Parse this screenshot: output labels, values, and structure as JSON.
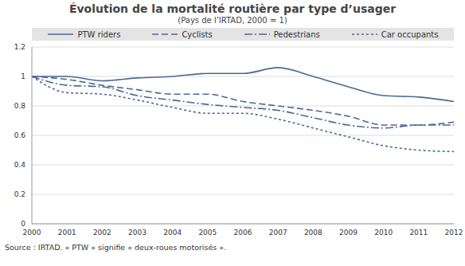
{
  "chart_data": {
    "type": "line",
    "title": "Évolution de la mortalité routière par type d’usager",
    "subtitle": "(Pays de l’IRTAD, 2000 = 1)",
    "source": "Source : IRTAD. « PTW » signifie « deux-roues motorisés ».",
    "categories": [
      "2000",
      "2001",
      "2002",
      "2003",
      "2004",
      "2005",
      "2006",
      "2007",
      "2008",
      "2009",
      "2010",
      "2011",
      "2012"
    ],
    "series": [
      {
        "name": "PTW riders",
        "color": "#4a6a94",
        "line_style": "solid",
        "values": [
          1,
          1.0,
          0.97,
          0.99,
          1.0,
          1.02,
          1.02,
          1.06,
          1.0,
          0.93,
          0.87,
          0.86,
          0.83
        ]
      },
      {
        "name": "Cyclists",
        "color": "#4a6a94",
        "line_style": "dashed",
        "values": [
          1,
          0.98,
          0.94,
          0.91,
          0.88,
          0.88,
          0.83,
          0.8,
          0.77,
          0.73,
          0.67,
          0.67,
          0.69
        ]
      },
      {
        "name": "Pedestrians",
        "color": "#4a6a94",
        "line_style": "dashdot",
        "values": [
          1,
          0.94,
          0.93,
          0.87,
          0.84,
          0.81,
          0.79,
          0.77,
          0.72,
          0.67,
          0.65,
          0.67,
          0.67
        ]
      },
      {
        "name": "Car occupants",
        "color": "#4a6a94",
        "line_style": "dotted",
        "values": [
          1,
          0.89,
          0.88,
          0.84,
          0.79,
          0.75,
          0.75,
          0.71,
          0.65,
          0.59,
          0.53,
          0.5,
          0.49
        ]
      }
    ],
    "ylim": [
      0,
      1.2
    ],
    "yticks": [
      0,
      0.2,
      0.4,
      0.6,
      0.8,
      1,
      1.2
    ],
    "grid": true,
    "legend": "top"
  }
}
